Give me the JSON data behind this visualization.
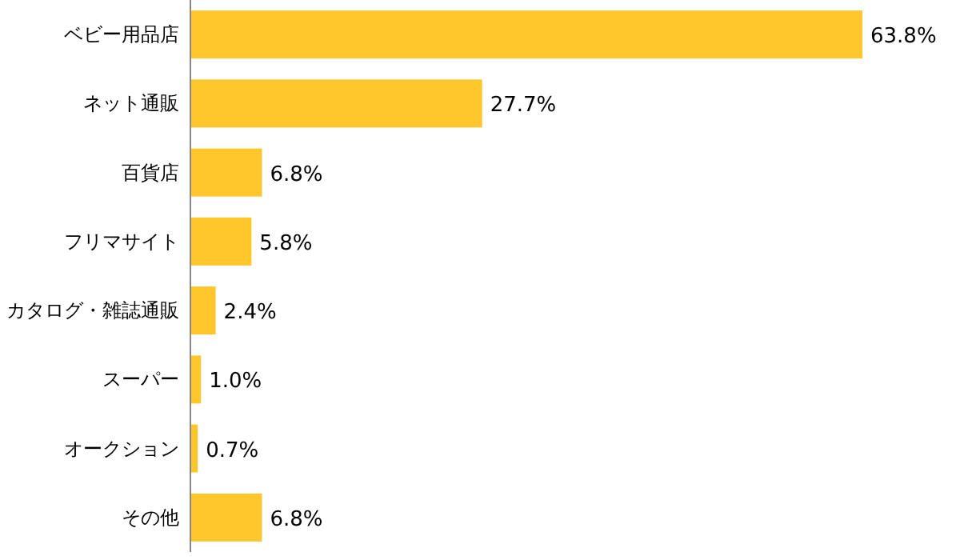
{
  "chart_data": {
    "type": "bar",
    "orientation": "horizontal",
    "categories": [
      "ベビー用品店",
      "ネット通販",
      "百貨店",
      "フリマサイト",
      "カタログ・雑誌通販",
      "スーパー",
      "オークション",
      "その他"
    ],
    "values": [
      63.8,
      27.7,
      6.8,
      5.8,
      2.4,
      1.0,
      0.7,
      6.8
    ],
    "value_labels": [
      "63.8%",
      "27.7%",
      "6.8%",
      "5.8%",
      "2.4%",
      "1.0%",
      "0.7%",
      "6.8%"
    ],
    "color": "#ffc72c"
  }
}
